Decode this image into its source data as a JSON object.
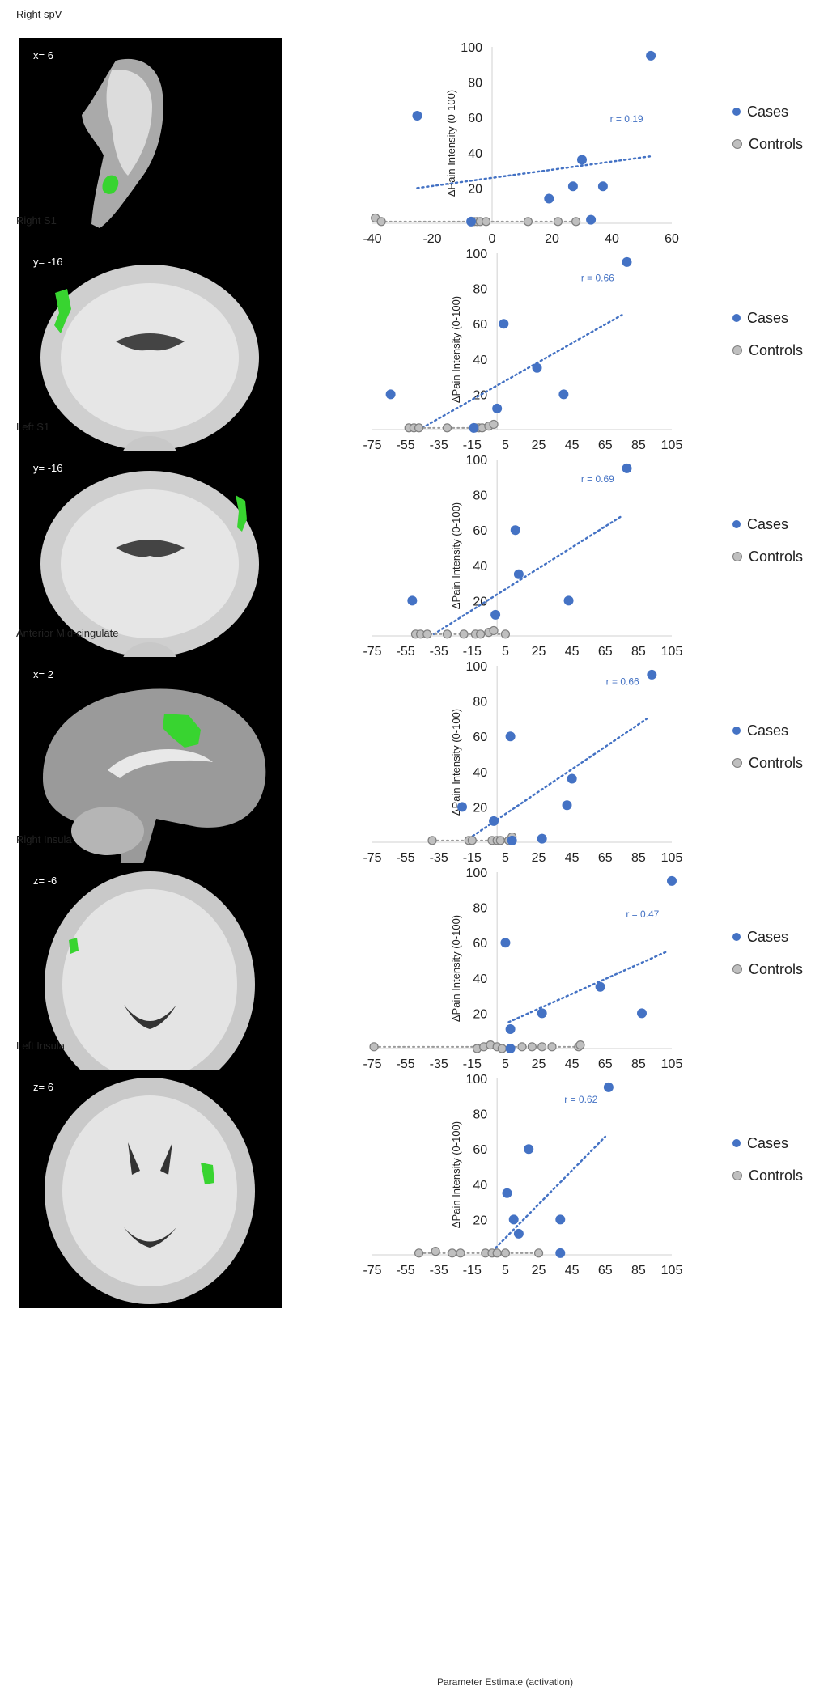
{
  "colors": {
    "cases": "#4472c4",
    "controls": "#bfbfbf",
    "trend": "#4472c4",
    "roi": "#38d430"
  },
  "x_axis_title": "Parameter Estimate (activation)",
  "legend": {
    "cases": "Cases",
    "controls": "Controls"
  },
  "chart_data": [
    {
      "type": "scatter",
      "title": "Right spV",
      "coordinate": "x= 6",
      "ylabel": "ΔPain Intensity (0-100)",
      "xlim": [
        -40,
        60
      ],
      "xticks": [
        "-40",
        "-20",
        "0",
        "20",
        "40",
        "60"
      ],
      "ylim": [
        0,
        100
      ],
      "yticks": [
        "20",
        "40",
        "60",
        "80",
        "100"
      ],
      "annotation": "r = 0.19",
      "series": [
        {
          "name": "Cases",
          "points": [
            [
              -25,
              61
            ],
            [
              -7,
              1
            ],
            [
              19,
              14
            ],
            [
              27,
              21
            ],
            [
              30,
              36
            ],
            [
              33,
              2
            ],
            [
              37,
              21
            ],
            [
              53,
              95
            ]
          ]
        },
        {
          "name": "Controls",
          "points": [
            [
              -39,
              3
            ],
            [
              -37,
              1
            ],
            [
              -6,
              1
            ],
            [
              -5,
              1
            ],
            [
              -4,
              1
            ],
            [
              -2,
              1
            ],
            [
              12,
              1
            ],
            [
              22,
              1
            ],
            [
              28,
              1
            ]
          ]
        }
      ],
      "trend": [
        [
          -25,
          20
        ],
        [
          53,
          38
        ]
      ]
    },
    {
      "type": "scatter",
      "title": "Right S1",
      "coordinate": "y= -16",
      "ylabel": "ΔPain Intensity (0-100)",
      "xlim": [
        -75,
        105
      ],
      "xticks": [
        "-75",
        "-55",
        "-35",
        "-15",
        "5",
        "25",
        "45",
        "65",
        "85",
        "105"
      ],
      "ylim": [
        0,
        100
      ],
      "yticks": [
        "20",
        "40",
        "60",
        "80",
        "100"
      ],
      "annotation": "r = 0.66",
      "series": [
        {
          "name": "Cases",
          "points": [
            [
              -64,
              20
            ],
            [
              -14,
              1
            ],
            [
              0,
              12
            ],
            [
              4,
              60
            ],
            [
              24,
              35
            ],
            [
              40,
              20
            ],
            [
              78,
              95
            ]
          ]
        },
        {
          "name": "Controls",
          "points": [
            [
              -53,
              1
            ],
            [
              -50,
              1
            ],
            [
              -47,
              1
            ],
            [
              -30,
              1
            ],
            [
              -13,
              1
            ],
            [
              -11,
              1
            ],
            [
              -9,
              1
            ],
            [
              -5,
              2
            ],
            [
              -2,
              3
            ]
          ]
        }
      ],
      "trend": [
        [
          -45,
          1
        ],
        [
          75,
          65
        ]
      ]
    },
    {
      "type": "scatter",
      "title": "Left S1",
      "coordinate": "y= -16",
      "ylabel": "ΔPain Intensity (0-100)",
      "xlim": [
        -75,
        105
      ],
      "xticks": [
        "-75",
        "-55",
        "-35",
        "-15",
        "5",
        "25",
        "45",
        "65",
        "85",
        "105"
      ],
      "ylim": [
        0,
        100
      ],
      "yticks": [
        "20",
        "40",
        "60",
        "80",
        "100"
      ],
      "annotation": "r = 0.69",
      "series": [
        {
          "name": "Cases",
          "points": [
            [
              -51,
              20
            ],
            [
              -1,
              12
            ],
            [
              11,
              60
            ],
            [
              13,
              35
            ],
            [
              43,
              20
            ],
            [
              78,
              95
            ]
          ]
        },
        {
          "name": "Controls",
          "points": [
            [
              -49,
              1
            ],
            [
              -46,
              1
            ],
            [
              -42,
              1
            ],
            [
              -30,
              1
            ],
            [
              -20,
              1
            ],
            [
              -13,
              1
            ],
            [
              -10,
              1
            ],
            [
              -5,
              2
            ],
            [
              -2,
              3
            ],
            [
              5,
              1
            ]
          ]
        }
      ],
      "trend": [
        [
          -38,
          1
        ],
        [
          75,
          68
        ]
      ]
    },
    {
      "type": "scatter",
      "title": "Anterior Mid-cingulate",
      "coordinate": "x= 2",
      "ylabel": "ΔPain Intensity (0-100)",
      "xlim": [
        -75,
        105
      ],
      "xticks": [
        "-75",
        "-55",
        "-35",
        "-15",
        "5",
        "25",
        "45",
        "65",
        "85",
        "105"
      ],
      "ylim": [
        0,
        100
      ],
      "yticks": [
        "20",
        "40",
        "60",
        "80",
        "100"
      ],
      "annotation": "r = 0.66",
      "series": [
        {
          "name": "Cases",
          "points": [
            [
              -21,
              20
            ],
            [
              -2,
              12
            ],
            [
              8,
              60
            ],
            [
              9,
              1
            ],
            [
              27,
              2
            ],
            [
              42,
              21
            ],
            [
              45,
              36
            ],
            [
              93,
              95
            ]
          ]
        },
        {
          "name": "Controls",
          "points": [
            [
              -39,
              1
            ],
            [
              -17,
              1
            ],
            [
              -15,
              1
            ],
            [
              -3,
              1
            ],
            [
              0,
              1
            ],
            [
              2,
              1
            ],
            [
              7,
              1
            ],
            [
              9,
              3
            ]
          ]
        }
      ],
      "trend": [
        [
          -17,
          2
        ],
        [
          90,
          70
        ]
      ]
    },
    {
      "type": "scatter",
      "title": "Right Insula",
      "coordinate": "z= -6",
      "ylabel": "ΔPain Intensity (0-100)",
      "xlim": [
        -75,
        105
      ],
      "xticks": [
        "-75",
        "-55",
        "-35",
        "-15",
        "5",
        "25",
        "45",
        "65",
        "85",
        "105"
      ],
      "ylim": [
        0,
        100
      ],
      "yticks": [
        "20",
        "40",
        "60",
        "80",
        "100"
      ],
      "annotation": "r = 0.47",
      "series": [
        {
          "name": "Cases",
          "points": [
            [
              5,
              60
            ],
            [
              8,
              11
            ],
            [
              8,
              0
            ],
            [
              27,
              20
            ],
            [
              62,
              35
            ],
            [
              87,
              20
            ],
            [
              105,
              95
            ]
          ]
        },
        {
          "name": "Controls",
          "points": [
            [
              -74,
              1
            ],
            [
              -12,
              0
            ],
            [
              -8,
              1
            ],
            [
              -4,
              2
            ],
            [
              0,
              1
            ],
            [
              3,
              0
            ],
            [
              15,
              1
            ],
            [
              21,
              1
            ],
            [
              27,
              1
            ],
            [
              33,
              1
            ],
            [
              49,
              1
            ],
            [
              50,
              2
            ]
          ]
        }
      ],
      "trend": [
        [
          7,
          15
        ],
        [
          102,
          55
        ]
      ]
    },
    {
      "type": "scatter",
      "title": "Left Insula",
      "coordinate": "z= 6",
      "ylabel": "ΔPain Intensity (0-100)",
      "xlim": [
        -75,
        105
      ],
      "xticks": [
        "-75",
        "-55",
        "-35",
        "-15",
        "5",
        "25",
        "45",
        "65",
        "85",
        "105"
      ],
      "ylim": [
        0,
        100
      ],
      "yticks": [
        "20",
        "40",
        "60",
        "80",
        "100"
      ],
      "annotation": "r = 0.62",
      "series": [
        {
          "name": "Cases",
          "points": [
            [
              6,
              35
            ],
            [
              10,
              20
            ],
            [
              13,
              12
            ],
            [
              19,
              60
            ],
            [
              38,
              20
            ],
            [
              38,
              1
            ],
            [
              67,
              95
            ]
          ]
        },
        {
          "name": "Controls",
          "points": [
            [
              -47,
              1
            ],
            [
              -37,
              2
            ],
            [
              -27,
              1
            ],
            [
              -22,
              1
            ],
            [
              -7,
              1
            ],
            [
              -3,
              1
            ],
            [
              0,
              1
            ],
            [
              5,
              1
            ],
            [
              25,
              1
            ]
          ]
        }
      ],
      "trend": [
        [
          -5,
          0
        ],
        [
          65,
          67
        ]
      ]
    }
  ]
}
